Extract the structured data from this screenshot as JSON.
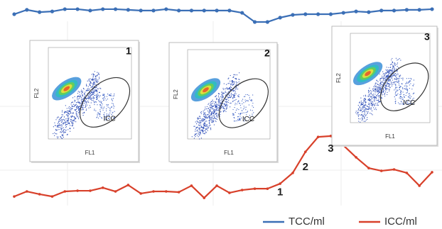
{
  "chart_data": {
    "type": "line",
    "x": [
      0,
      1,
      2,
      3,
      4,
      5,
      6,
      7,
      8,
      9,
      10,
      11,
      12,
      13,
      14,
      15,
      16,
      17,
      18,
      19,
      20,
      21,
      22,
      23,
      24,
      25,
      26,
      27,
      28,
      29,
      30,
      31,
      32,
      33
    ],
    "xlim": [
      0,
      33
    ],
    "ylim": [
      0,
      100
    ],
    "grid": true,
    "legend": "bottom-right",
    "series": [
      {
        "name": "TCC/ml",
        "color": "#3b6fb6",
        "values": [
          93.8,
          95.7,
          94.7,
          95.0,
          96.0,
          96.0,
          95.4,
          96.0,
          96.0,
          95.7,
          95.4,
          95.4,
          96.0,
          95.4,
          95.4,
          95.4,
          95.4,
          95.4,
          94.4,
          90.4,
          90.4,
          92.3,
          93.5,
          93.8,
          93.8,
          93.8,
          94.4,
          95.0,
          94.7,
          95.4,
          95.4,
          95.7,
          95.7,
          96.0
        ]
      },
      {
        "name": "ICC/ml",
        "color": "#d8402a",
        "values": [
          14.2,
          16.4,
          15.2,
          14.2,
          16.4,
          16.7,
          16.7,
          18.0,
          16.4,
          19.2,
          15.5,
          16.4,
          16.4,
          16.1,
          18.9,
          13.6,
          18.9,
          15.8,
          17.0,
          17.6,
          17.6,
          19.8,
          24.5,
          33.7,
          40.2,
          40.6,
          36.5,
          31.3,
          26.6,
          25.4,
          26.0,
          24.5,
          18.9,
          24.8
        ]
      }
    ],
    "annotations": [
      {
        "text": "1",
        "x": 21,
        "y": 16
      },
      {
        "text": "2",
        "x": 23,
        "y": 27
      },
      {
        "text": "3",
        "x": 25,
        "y": 35
      }
    ],
    "insets": [
      {
        "label": "1",
        "gate_label": "ICC",
        "x_label": "FL1",
        "y_label": "FL2"
      },
      {
        "label": "2",
        "gate_label": "ICC",
        "x_label": "FL1",
        "y_label": "FL2"
      },
      {
        "label": "3",
        "gate_label": "ICC",
        "x_label": "FL1",
        "y_label": "FL2"
      }
    ]
  }
}
